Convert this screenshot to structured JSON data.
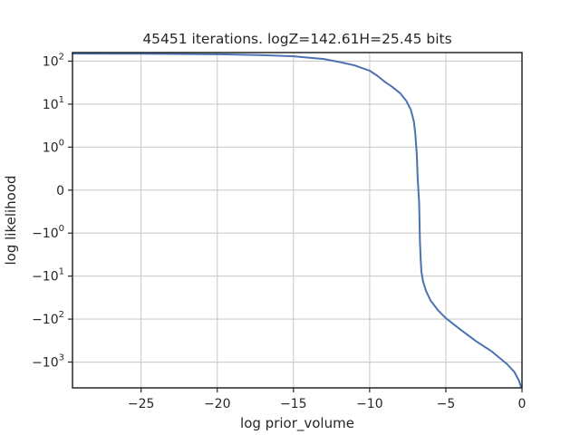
{
  "chart_data": {
    "type": "line",
    "title": "45451 iterations. logZ=142.61H=25.45 bits",
    "xlabel": "log prior_volume",
    "ylabel": "log likelihood",
    "xlim": [
      -29.5,
      0
    ],
    "yscale": "symlog",
    "grid": true,
    "x_ticks": [
      {
        "value": -25,
        "label": "−25"
      },
      {
        "value": -20,
        "label": "−20"
      },
      {
        "value": -15,
        "label": "−15"
      },
      {
        "value": -10,
        "label": "−10"
      },
      {
        "value": -5,
        "label": "−5"
      },
      {
        "value": 0,
        "label": "0"
      }
    ],
    "y_ticks": [
      {
        "value": 100,
        "base": "10",
        "exp": "2"
      },
      {
        "value": 10,
        "base": "10",
        "exp": "1"
      },
      {
        "value": 1,
        "base": "10",
        "exp": "0"
      },
      {
        "value": 0,
        "base": "0",
        "exp": ""
      },
      {
        "value": -1,
        "base": "−10",
        "exp": "0"
      },
      {
        "value": -10,
        "base": "−10",
        "exp": "1"
      },
      {
        "value": -100,
        "base": "−10",
        "exp": "2"
      },
      {
        "value": -1000,
        "base": "−10",
        "exp": "3"
      }
    ],
    "series": [
      {
        "color": "#4c72b0",
        "x": [
          -29.5,
          -25,
          -20,
          -17,
          -15,
          -13,
          -12,
          -11,
          -10,
          -9.5,
          -9,
          -8.5,
          -8,
          -7.6,
          -7.3,
          -7.1,
          -7.0,
          -6.9,
          -6.85,
          -6.8,
          -6.75,
          -6.7,
          -6.65,
          -6.6,
          -6.5,
          -6.3,
          -6.0,
          -5.5,
          -5.0,
          -4.0,
          -3.0,
          -2.0,
          -1.0,
          -0.5,
          -0.2,
          -0.05
        ],
        "y": [
          150,
          149,
          145,
          138,
          130,
          112,
          96,
          80,
          60,
          46,
          33,
          25,
          18,
          12,
          7.5,
          4,
          2,
          0.8,
          0.3,
          0,
          -0.3,
          -1.5,
          -4,
          -8,
          -13,
          -22,
          -37,
          -63,
          -95,
          -180,
          -330,
          -560,
          -1100,
          -1700,
          -2700,
          -3900
        ]
      }
    ]
  }
}
